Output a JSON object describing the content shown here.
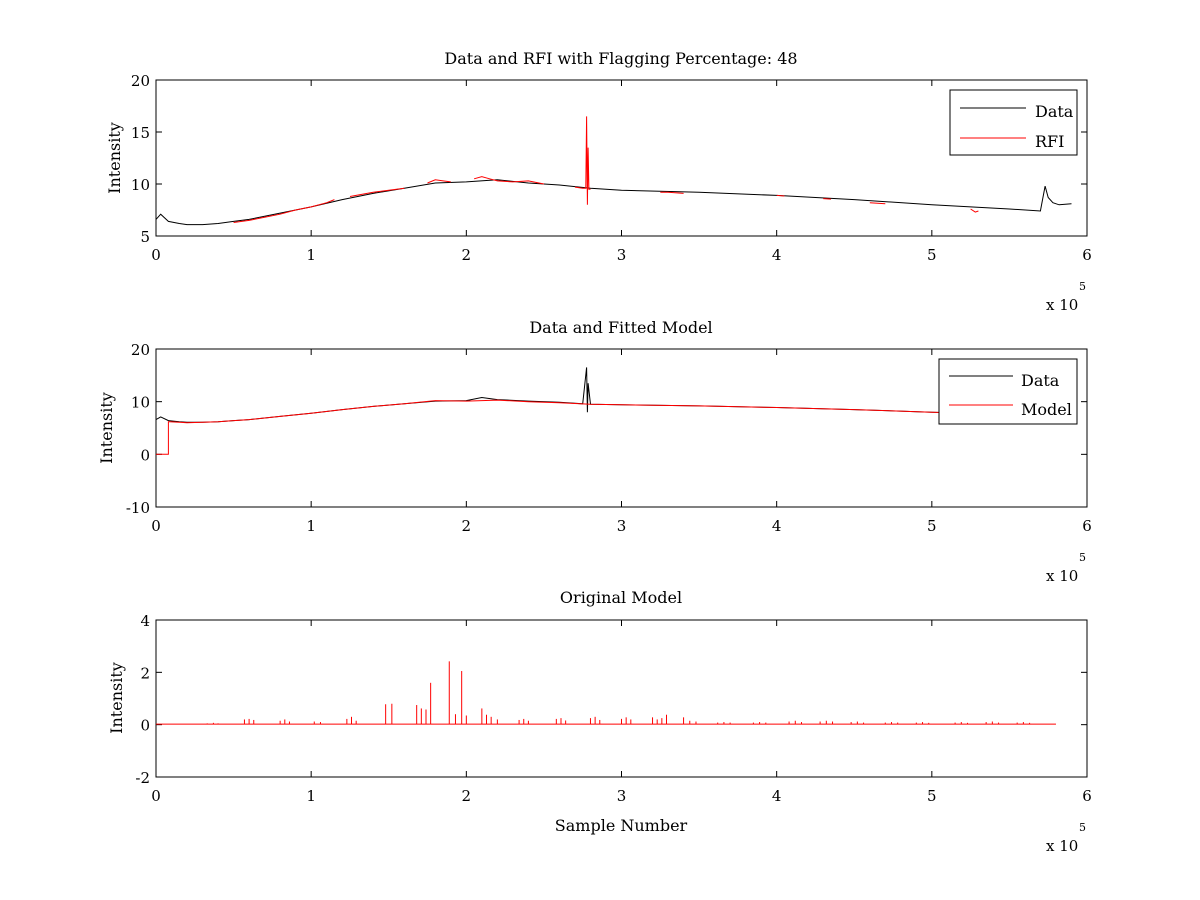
{
  "figure": {
    "background": "#ffffff"
  },
  "colors": {
    "data": "#000000",
    "rfi": "#ff0000",
    "model": "#ff0000"
  },
  "chart_data": [
    {
      "type": "line",
      "title": "Data and RFI with Flagging Percentage: 48",
      "xlabel": "",
      "ylabel": "Intensity",
      "xlim": [
        0,
        600000
      ],
      "ylim": [
        5,
        20
      ],
      "x_ticks": [
        0,
        1,
        2,
        3,
        4,
        5,
        6
      ],
      "y_ticks": [
        5,
        10,
        15,
        20
      ],
      "x_exponent_text": "x 10",
      "x_exponent_power": "5",
      "grid": false,
      "legend": {
        "position": "top-right",
        "entries": [
          "Data",
          "RFI"
        ]
      },
      "series": [
        {
          "name": "Data",
          "color": "#000000",
          "x": [
            0,
            3000,
            8000,
            15000,
            20000,
            30000,
            40000,
            50000,
            60000,
            80000,
            100000,
            120000,
            140000,
            160000,
            180000,
            200000,
            220000,
            240000,
            260000,
            280000,
            300000,
            350000,
            400000,
            450000,
            500000,
            550000,
            570000,
            573000,
            575000,
            578000,
            582000,
            590000
          ],
          "y": [
            6.6,
            7.1,
            6.4,
            6.2,
            6.1,
            6.1,
            6.2,
            6.4,
            6.6,
            7.2,
            7.8,
            8.5,
            9.1,
            9.6,
            10.1,
            10.2,
            10.4,
            10.1,
            9.9,
            9.6,
            9.4,
            9.2,
            8.9,
            8.5,
            8.0,
            7.6,
            7.4,
            9.8,
            8.7,
            8.2,
            8.0,
            8.1
          ]
        },
        {
          "name": "RFI",
          "color": "#ff0000",
          "segments": [
            {
              "x": [
                50000,
                60000,
                70000,
                80000,
                90000,
                100000,
                110000,
                115000
              ],
              "y": [
                6.3,
                6.5,
                6.8,
                7.1,
                7.5,
                7.8,
                8.2,
                8.5
              ]
            },
            {
              "x": [
                125000,
                140000,
                150000,
                160000
              ],
              "y": [
                8.8,
                9.2,
                9.4,
                9.6
              ]
            },
            {
              "x": [
                175000,
                180000,
                185000,
                190000
              ],
              "y": [
                10.1,
                10.4,
                10.3,
                10.2
              ]
            },
            {
              "x": [
                205000,
                210000,
                215000,
                220000,
                230000,
                240000,
                250000
              ],
              "y": [
                10.5,
                10.7,
                10.5,
                10.3,
                10.2,
                10.3,
                10.0
              ]
            },
            {
              "x": [
                270000,
                275000,
                277000,
                277500,
                278000,
                278500,
                279000,
                280000
              ],
              "y": [
                9.7,
                9.6,
                9.6,
                16.5,
                8.0,
                13.5,
                9.5,
                9.5
              ]
            },
            {
              "x": [
                325000,
                330000,
                340000
              ],
              "y": [
                9.2,
                9.2,
                9.1
              ]
            },
            {
              "x": [
                400000,
                405000
              ],
              "y": [
                8.9,
                8.85
              ]
            },
            {
              "x": [
                430000,
                435000
              ],
              "y": [
                8.6,
                8.55
              ]
            },
            {
              "x": [
                460000,
                470000
              ],
              "y": [
                8.2,
                8.1
              ]
            },
            {
              "x": [
                525000,
                528000,
                530000
              ],
              "y": [
                7.6,
                7.3,
                7.4
              ]
            }
          ]
        }
      ]
    },
    {
      "type": "line",
      "title": "Data and Fitted Model",
      "xlabel": "",
      "ylabel": "Intensity",
      "xlim": [
        0,
        600000
      ],
      "ylim": [
        -10,
        20
      ],
      "x_ticks": [
        0,
        1,
        2,
        3,
        4,
        5,
        6
      ],
      "y_ticks": [
        -10,
        0,
        10,
        20
      ],
      "x_exponent_text": "x 10",
      "x_exponent_power": "5",
      "grid": false,
      "legend": {
        "position": "top-right",
        "entries": [
          "Data",
          "Model"
        ]
      },
      "series": [
        {
          "name": "Data",
          "color": "#000000",
          "x": [
            0,
            3000,
            8000,
            15000,
            20000,
            30000,
            40000,
            50000,
            60000,
            80000,
            100000,
            120000,
            140000,
            160000,
            180000,
            200000,
            210000,
            220000,
            240000,
            260000,
            275000,
            277500,
            278000,
            278500,
            280000,
            300000,
            350000,
            400000,
            450000,
            500000,
            550000,
            580000
          ],
          "y": [
            6.6,
            7.1,
            6.4,
            6.2,
            6.1,
            6.1,
            6.2,
            6.4,
            6.6,
            7.2,
            7.8,
            8.5,
            9.1,
            9.6,
            10.1,
            10.2,
            10.8,
            10.4,
            10.1,
            9.9,
            9.6,
            16.5,
            8.0,
            13.5,
            9.5,
            9.4,
            9.2,
            8.9,
            8.5,
            8.0,
            7.6,
            7.4
          ]
        },
        {
          "name": "Model",
          "color": "#ff0000",
          "x": [
            0,
            8000,
            8000,
            8500,
            15000,
            20000,
            30000,
            40000,
            50000,
            60000,
            80000,
            100000,
            120000,
            140000,
            160000,
            180000,
            200000,
            220000,
            240000,
            260000,
            280000,
            300000,
            350000,
            400000,
            450000,
            500000,
            550000,
            580000
          ],
          "y": [
            0,
            0,
            6.2,
            6.2,
            6.1,
            6.0,
            6.1,
            6.2,
            6.4,
            6.6,
            7.2,
            7.8,
            8.5,
            9.1,
            9.6,
            10.2,
            10.1,
            10.3,
            10.0,
            9.8,
            9.5,
            9.4,
            9.2,
            8.9,
            8.5,
            8.0,
            7.6,
            7.4
          ]
        }
      ]
    },
    {
      "type": "line",
      "title": "Original Model",
      "xlabel": "Sample Number",
      "ylabel": "Intensity",
      "xlim": [
        0,
        600000
      ],
      "ylim": [
        -2,
        4
      ],
      "x_ticks": [
        0,
        1,
        2,
        3,
        4,
        5,
        6
      ],
      "y_ticks": [
        -2,
        0,
        2,
        4
      ],
      "x_exponent_text": "x 10",
      "x_exponent_power": "5",
      "grid": false,
      "series": [
        {
          "color": "#ff0000",
          "baseline": 0.02,
          "xmax": 580000,
          "spike_x": [
            33000,
            37000,
            40000,
            57000,
            60000,
            63000,
            80000,
            83000,
            86000,
            102000,
            106000,
            123000,
            126000,
            129000,
            148000,
            152000,
            168000,
            171000,
            174000,
            177000,
            189000,
            193000,
            197000,
            200000,
            210000,
            213000,
            216000,
            220000,
            234000,
            237000,
            240000,
            258000,
            261000,
            264000,
            280000,
            283000,
            286000,
            300000,
            303000,
            306000,
            320000,
            323000,
            326000,
            329000,
            340000,
            344000,
            348000,
            362000,
            366000,
            370000,
            385000,
            389000,
            393000,
            408000,
            412000,
            416000,
            428000,
            432000,
            436000,
            448000,
            452000,
            456000,
            470000,
            474000,
            478000,
            490000,
            494000,
            498000,
            515000,
            519000,
            523000,
            535000,
            539000,
            543000,
            555000,
            559000,
            563000
          ],
          "spike_y": [
            0.05,
            0.07,
            0.05,
            0.2,
            0.22,
            0.18,
            0.15,
            0.2,
            0.12,
            0.12,
            0.1,
            0.22,
            0.3,
            0.15,
            0.78,
            0.8,
            0.75,
            0.62,
            0.58,
            1.6,
            2.42,
            0.4,
            2.05,
            0.35,
            0.62,
            0.38,
            0.3,
            0.2,
            0.18,
            0.22,
            0.15,
            0.22,
            0.25,
            0.16,
            0.25,
            0.3,
            0.18,
            0.22,
            0.28,
            0.2,
            0.28,
            0.2,
            0.25,
            0.38,
            0.28,
            0.15,
            0.12,
            0.08,
            0.1,
            0.08,
            0.08,
            0.1,
            0.08,
            0.12,
            0.15,
            0.1,
            0.12,
            0.15,
            0.12,
            0.1,
            0.12,
            0.08,
            0.08,
            0.1,
            0.08,
            0.08,
            0.1,
            0.07,
            0.08,
            0.1,
            0.07,
            0.1,
            0.12,
            0.08,
            0.08,
            0.1,
            0.07
          ]
        }
      ]
    }
  ]
}
